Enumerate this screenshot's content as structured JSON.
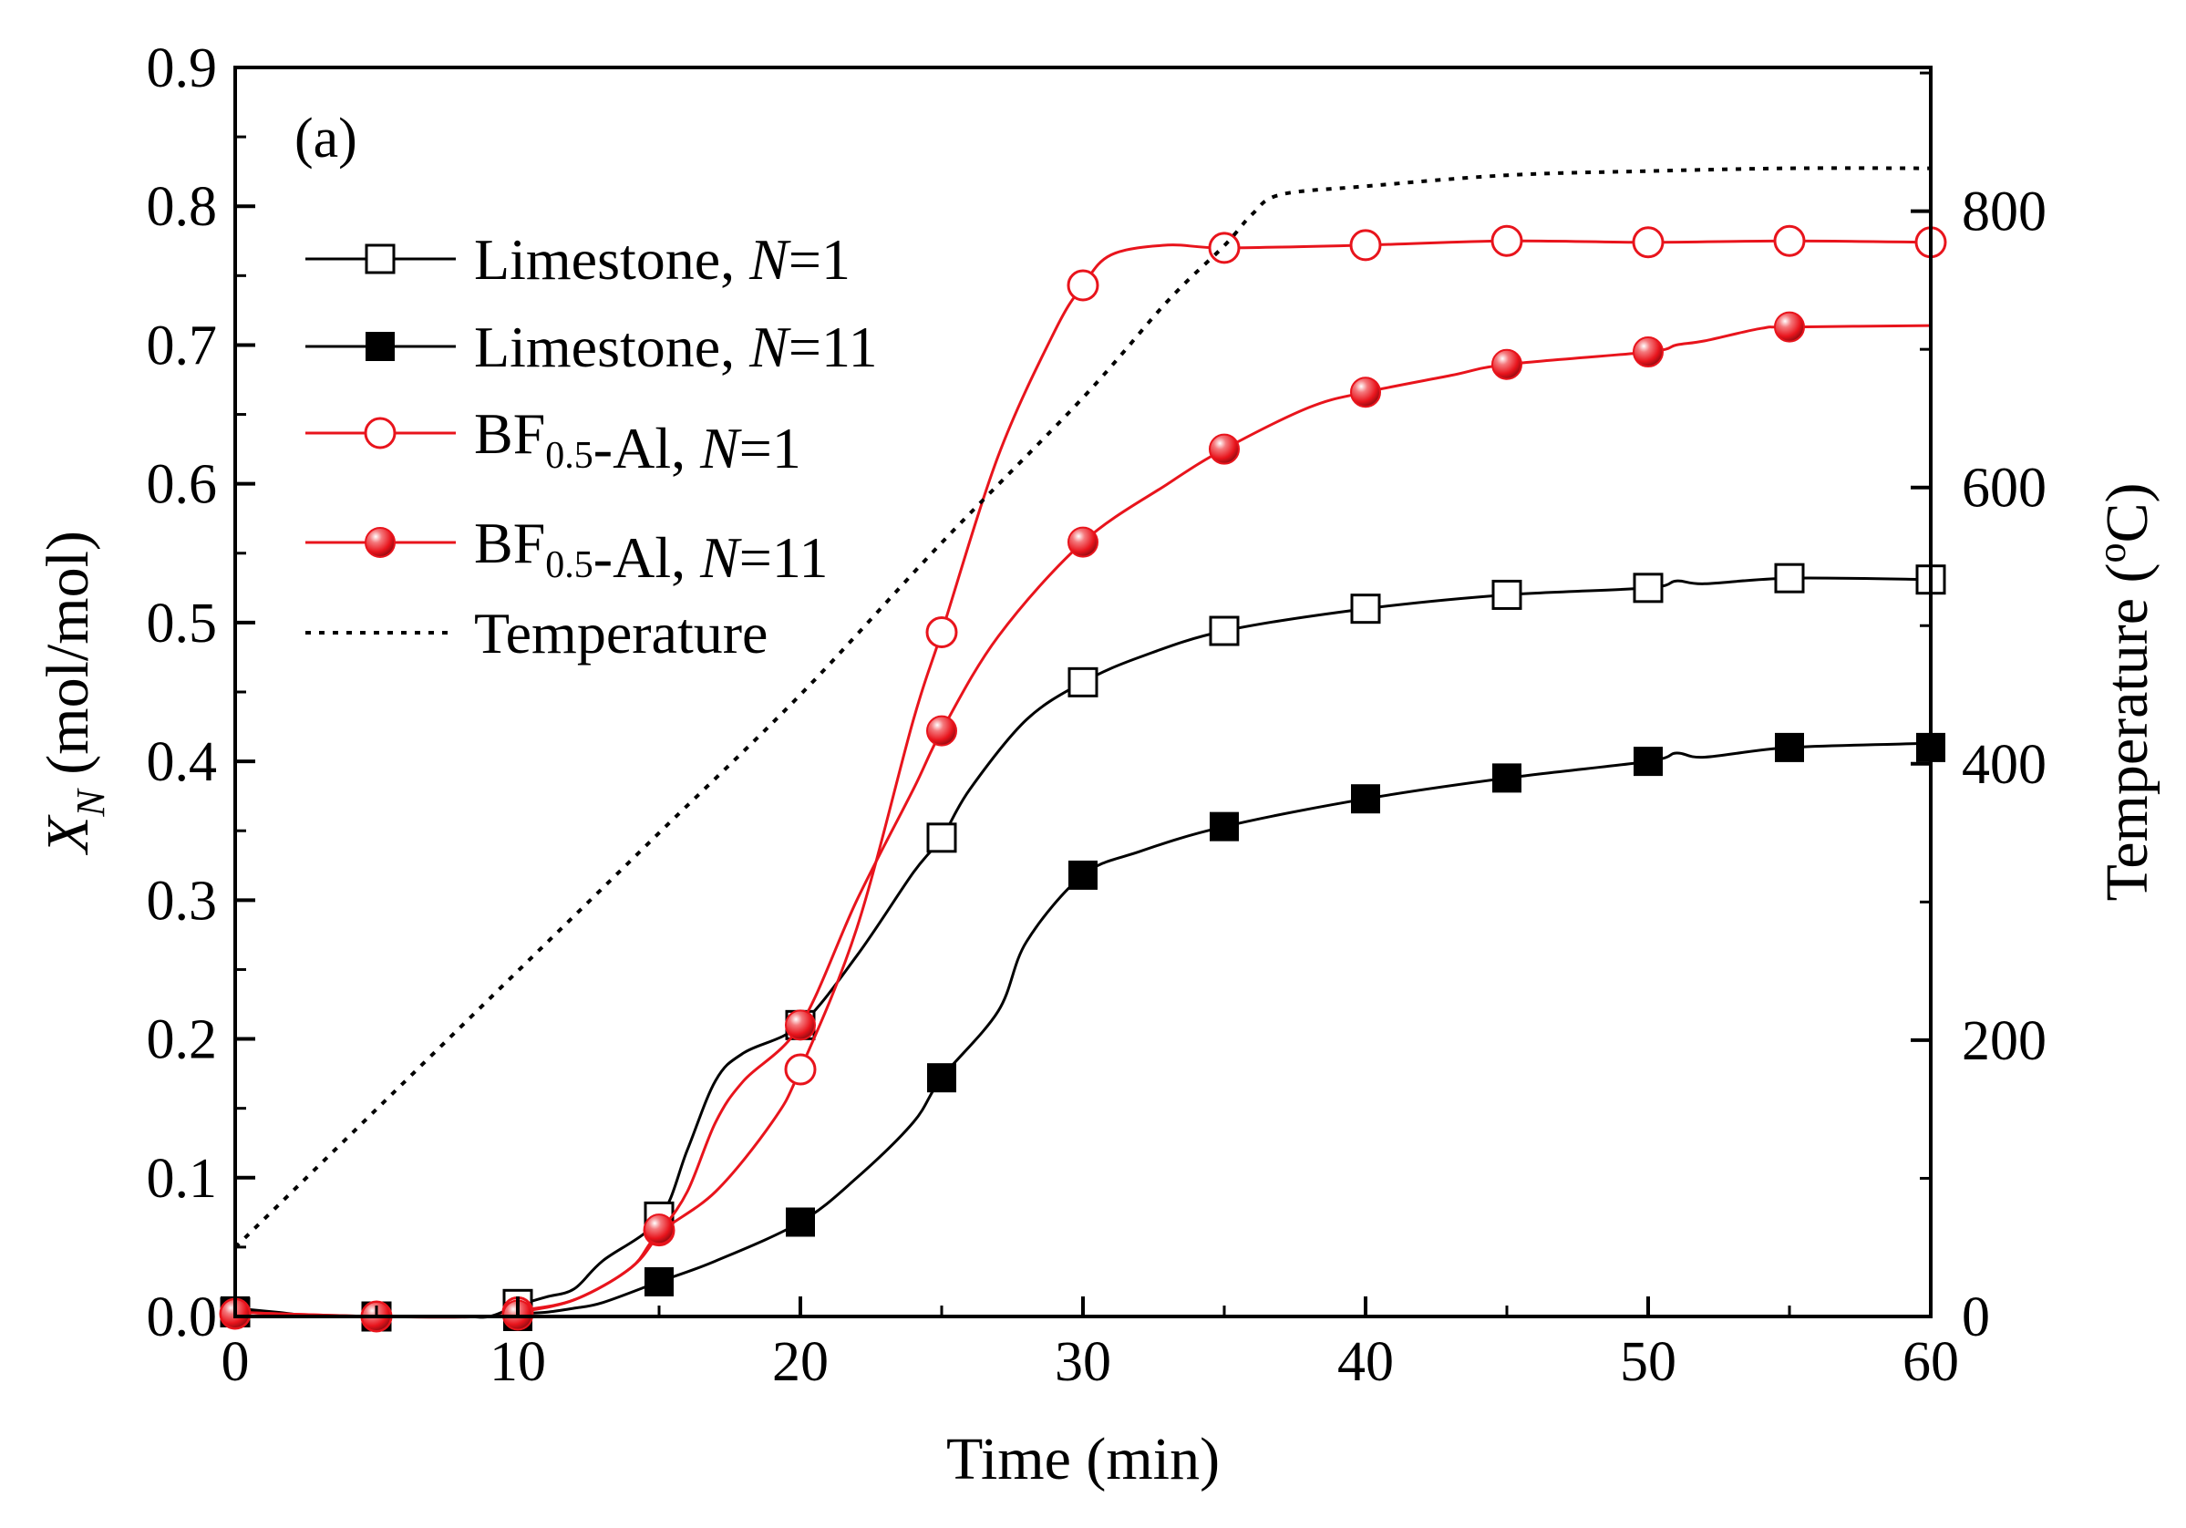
{
  "chart_data": {
    "type": "line",
    "panel_label": "(a)",
    "xlabel": "Time (min)",
    "ylabel_left": {
      "main": "X",
      "sub": "N",
      "rest": " (mol/mol)"
    },
    "ylabel_right": {
      "pre": "Temperature (",
      "sup": "o",
      "post": "C)"
    },
    "xlim": [
      0,
      60
    ],
    "ylim_left": [
      0,
      0.9
    ],
    "ylim_right": [
      0,
      904
    ],
    "x_ticks": [
      "0",
      "10",
      "20",
      "30",
      "40",
      "50",
      "60"
    ],
    "y_left_ticks": [
      "0.0",
      "0.1",
      "0.2",
      "0.3",
      "0.4",
      "0.5",
      "0.6",
      "0.7",
      "0.8",
      "0.9"
    ],
    "y_right_ticks": [
      "0",
      "200",
      "400",
      "600",
      "800"
    ],
    "grid": false,
    "legend_position": "top-left",
    "colors": {
      "black": "#000000",
      "red": "#e8141c",
      "axis": "#000000"
    },
    "series": [
      {
        "name_parts": [
          {
            "t": "Limestone, "
          },
          {
            "t": "N",
            "style": "italic"
          },
          {
            "t": "=1"
          }
        ],
        "color": "#000000",
        "marker": "open-square",
        "axis": "left",
        "curve": [
          [
            0,
            0.006
          ],
          [
            1.5,
            0.003
          ],
          [
            3,
            0.0
          ],
          [
            5,
            0.0
          ],
          [
            8,
            0.0
          ],
          [
            9,
            0.0
          ],
          [
            10,
            0.008
          ],
          [
            11,
            0.014
          ],
          [
            12,
            0.02
          ],
          [
            13,
            0.04
          ],
          [
            15,
            0.07
          ],
          [
            16,
            0.12
          ],
          [
            17,
            0.17
          ],
          [
            18,
            0.19
          ],
          [
            20,
            0.21
          ],
          [
            22,
            0.26
          ],
          [
            24,
            0.32
          ],
          [
            25,
            0.345
          ],
          [
            26,
            0.38
          ],
          [
            28,
            0.43
          ],
          [
            30,
            0.457
          ],
          [
            32,
            0.475
          ],
          [
            35,
            0.494
          ],
          [
            40,
            0.51
          ],
          [
            45,
            0.52
          ],
          [
            50,
            0.525
          ],
          [
            51,
            0.53
          ],
          [
            52,
            0.528
          ],
          [
            55,
            0.532
          ],
          [
            60,
            0.531
          ]
        ],
        "markers": [
          [
            0,
            0.003
          ],
          [
            5,
            0.0
          ],
          [
            10,
            0.009
          ],
          [
            15,
            0.072
          ],
          [
            20,
            0.21
          ],
          [
            25,
            0.345
          ],
          [
            30,
            0.457
          ],
          [
            35,
            0.494
          ],
          [
            40,
            0.51
          ],
          [
            45,
            0.52
          ],
          [
            50,
            0.525
          ],
          [
            55,
            0.532
          ],
          [
            60,
            0.531
          ]
        ]
      },
      {
        "name_parts": [
          {
            "t": "Limestone, "
          },
          {
            "t": "N",
            "style": "italic"
          },
          {
            "t": "=11"
          }
        ],
        "color": "#000000",
        "marker": "filled-square",
        "axis": "left",
        "curve": [
          [
            0,
            0.006
          ],
          [
            2,
            0.001
          ],
          [
            5,
            0.0
          ],
          [
            9,
            0.0
          ],
          [
            10,
            0.002
          ],
          [
            11,
            0.003
          ],
          [
            12,
            0.006
          ],
          [
            13,
            0.01
          ],
          [
            15,
            0.025
          ],
          [
            17,
            0.04
          ],
          [
            20,
            0.068
          ],
          [
            22,
            0.1
          ],
          [
            24,
            0.14
          ],
          [
            25,
            0.172
          ],
          [
            27,
            0.22
          ],
          [
            28,
            0.27
          ],
          [
            30,
            0.318
          ],
          [
            32,
            0.335
          ],
          [
            35,
            0.353
          ],
          [
            40,
            0.373
          ],
          [
            45,
            0.388
          ],
          [
            50,
            0.4
          ],
          [
            51,
            0.406
          ],
          [
            52,
            0.403
          ],
          [
            55,
            0.41
          ],
          [
            60,
            0.413
          ]
        ],
        "markers": [
          [
            0,
            0.004
          ],
          [
            5,
            0.0
          ],
          [
            10,
            0.0
          ],
          [
            15,
            0.025
          ],
          [
            20,
            0.068
          ],
          [
            25,
            0.172
          ],
          [
            30,
            0.318
          ],
          [
            35,
            0.353
          ],
          [
            40,
            0.373
          ],
          [
            45,
            0.388
          ],
          [
            50,
            0.4
          ],
          [
            55,
            0.41
          ],
          [
            60,
            0.41
          ]
        ]
      },
      {
        "name_parts": [
          {
            "t": "BF"
          },
          {
            "t": "0.5",
            "style": "sub"
          },
          {
            "t": "-Al, "
          },
          {
            "t": "N",
            "style": "italic"
          },
          {
            "t": "=1"
          }
        ],
        "color": "#e8141c",
        "marker": "open-circle",
        "axis": "left",
        "curve": [
          [
            0,
            0.003
          ],
          [
            5,
            0.0
          ],
          [
            9,
            0.0
          ],
          [
            10,
            0.004
          ],
          [
            12,
            0.012
          ],
          [
            14,
            0.035
          ],
          [
            15,
            0.06
          ],
          [
            17,
            0.09
          ],
          [
            19,
            0.14
          ],
          [
            20,
            0.178
          ],
          [
            22,
            0.28
          ],
          [
            24,
            0.43
          ],
          [
            25,
            0.493
          ],
          [
            27,
            0.62
          ],
          [
            29,
            0.71
          ],
          [
            30,
            0.743
          ],
          [
            31,
            0.765
          ],
          [
            33,
            0.772
          ],
          [
            35,
            0.77
          ],
          [
            40,
            0.772
          ],
          [
            45,
            0.775
          ],
          [
            50,
            0.774
          ],
          [
            55,
            0.775
          ],
          [
            60,
            0.774
          ]
        ],
        "markers": [
          [
            0,
            0.002
          ],
          [
            5,
            0.0
          ],
          [
            10,
            0.003
          ],
          [
            15,
            0.062
          ],
          [
            20,
            0.178
          ],
          [
            25,
            0.493
          ],
          [
            30,
            0.743
          ],
          [
            35,
            0.77
          ],
          [
            40,
            0.772
          ],
          [
            45,
            0.775
          ],
          [
            50,
            0.774
          ],
          [
            55,
            0.775
          ],
          [
            60,
            0.774
          ]
        ]
      },
      {
        "name_parts": [
          {
            "t": "BF"
          },
          {
            "t": "0.5",
            "style": "sub"
          },
          {
            "t": "-Al, "
          },
          {
            "t": "N",
            "style": "italic"
          },
          {
            "t": "=11"
          }
        ],
        "color": "#e8141c",
        "marker": "filled-circle",
        "axis": "left",
        "curve": [
          [
            0,
            0.003
          ],
          [
            5,
            0.0
          ],
          [
            9,
            0.0
          ],
          [
            10,
            0.003
          ],
          [
            12,
            0.012
          ],
          [
            14,
            0.035
          ],
          [
            15,
            0.06
          ],
          [
            16,
            0.09
          ],
          [
            17,
            0.14
          ],
          [
            18,
            0.17
          ],
          [
            20,
            0.21
          ],
          [
            22,
            0.3
          ],
          [
            24,
            0.38
          ],
          [
            25,
            0.422
          ],
          [
            27,
            0.49
          ],
          [
            30,
            0.558
          ],
          [
            33,
            0.6
          ],
          [
            35,
            0.625
          ],
          [
            38,
            0.655
          ],
          [
            40,
            0.666
          ],
          [
            43,
            0.678
          ],
          [
            45,
            0.686
          ],
          [
            50,
            0.695
          ],
          [
            51,
            0.7
          ],
          [
            52,
            0.703
          ],
          [
            54,
            0.712
          ],
          [
            55,
            0.713
          ],
          [
            60,
            0.714
          ]
        ],
        "markers": [
          [
            0,
            0.002
          ],
          [
            5,
            0.0
          ],
          [
            10,
            0.001
          ],
          [
            15,
            0.063
          ],
          [
            20,
            0.21
          ],
          [
            25,
            0.422
          ],
          [
            30,
            0.558
          ],
          [
            35,
            0.625
          ],
          [
            40,
            0.666
          ],
          [
            45,
            0.686
          ],
          [
            50,
            0.695
          ],
          [
            55,
            0.713
          ]
        ]
      },
      {
        "name_parts": [
          {
            "t": "Temperature"
          }
        ],
        "color": "#000000",
        "marker": "none",
        "dashed": true,
        "axis": "right",
        "curve": [
          [
            0,
            50
          ],
          [
            5,
            150
          ],
          [
            10,
            250
          ],
          [
            15,
            350
          ],
          [
            20,
            450
          ],
          [
            25,
            560
          ],
          [
            30,
            665
          ],
          [
            33,
            735
          ],
          [
            35,
            775
          ],
          [
            36,
            798
          ],
          [
            37,
            812
          ],
          [
            40,
            818
          ],
          [
            45,
            826
          ],
          [
            50,
            829
          ],
          [
            55,
            831
          ],
          [
            60,
            831
          ]
        ],
        "markers": []
      }
    ]
  }
}
